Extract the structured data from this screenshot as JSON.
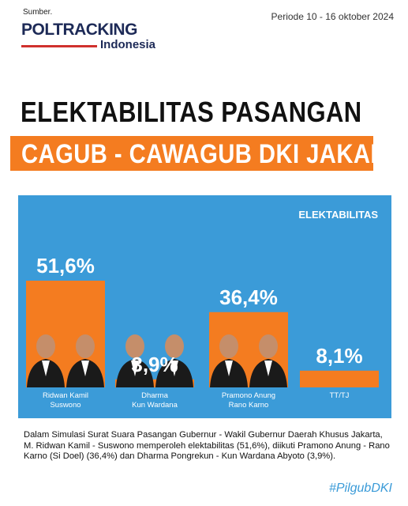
{
  "header": {
    "source_label": "Sumber.",
    "period": "Periode 10 - 16 oktober 2024",
    "logo_main": "POLTRACKING",
    "logo_sub": "Indonesia"
  },
  "title": {
    "line1": "ELEKTABILITAS  PASANGAN",
    "line2": "CAGUB - CAWAGUB DKI JAKARTA"
  },
  "colors": {
    "accent_orange": "#f47c20",
    "panel_blue": "#3b9bd8",
    "logo_navy": "#1d2a57"
  },
  "chart_data": {
    "type": "bar",
    "title": "ELEKTABILITAS",
    "categories": [
      "Ridwan Kamil\nSuswono",
      "Dharma\nKun Wardana",
      "Pramono Anung\nRano Karno",
      "TT/TJ"
    ],
    "values": [
      51.6,
      3.9,
      36.4,
      8.1
    ],
    "value_labels": [
      "51,6%",
      "3,9%",
      "36,4%",
      "8,1%"
    ],
    "grid": false,
    "legend": "none"
  },
  "footnote": "Dalam Simulasi Surat Suara Pasangan Gubernur - Wakil Gubernur Daerah Khusus Jakarta, M. Ridwan Kamil - Suswono  memperoleh elektabilitas (51,6%), diikuti Pramono Anung - Rano Karno (Si Doel) (36,4%) dan Dharma Pongrekun - Kun Wardana Abyoto (3,9%).",
  "hashtag": "#PilgubDKI"
}
